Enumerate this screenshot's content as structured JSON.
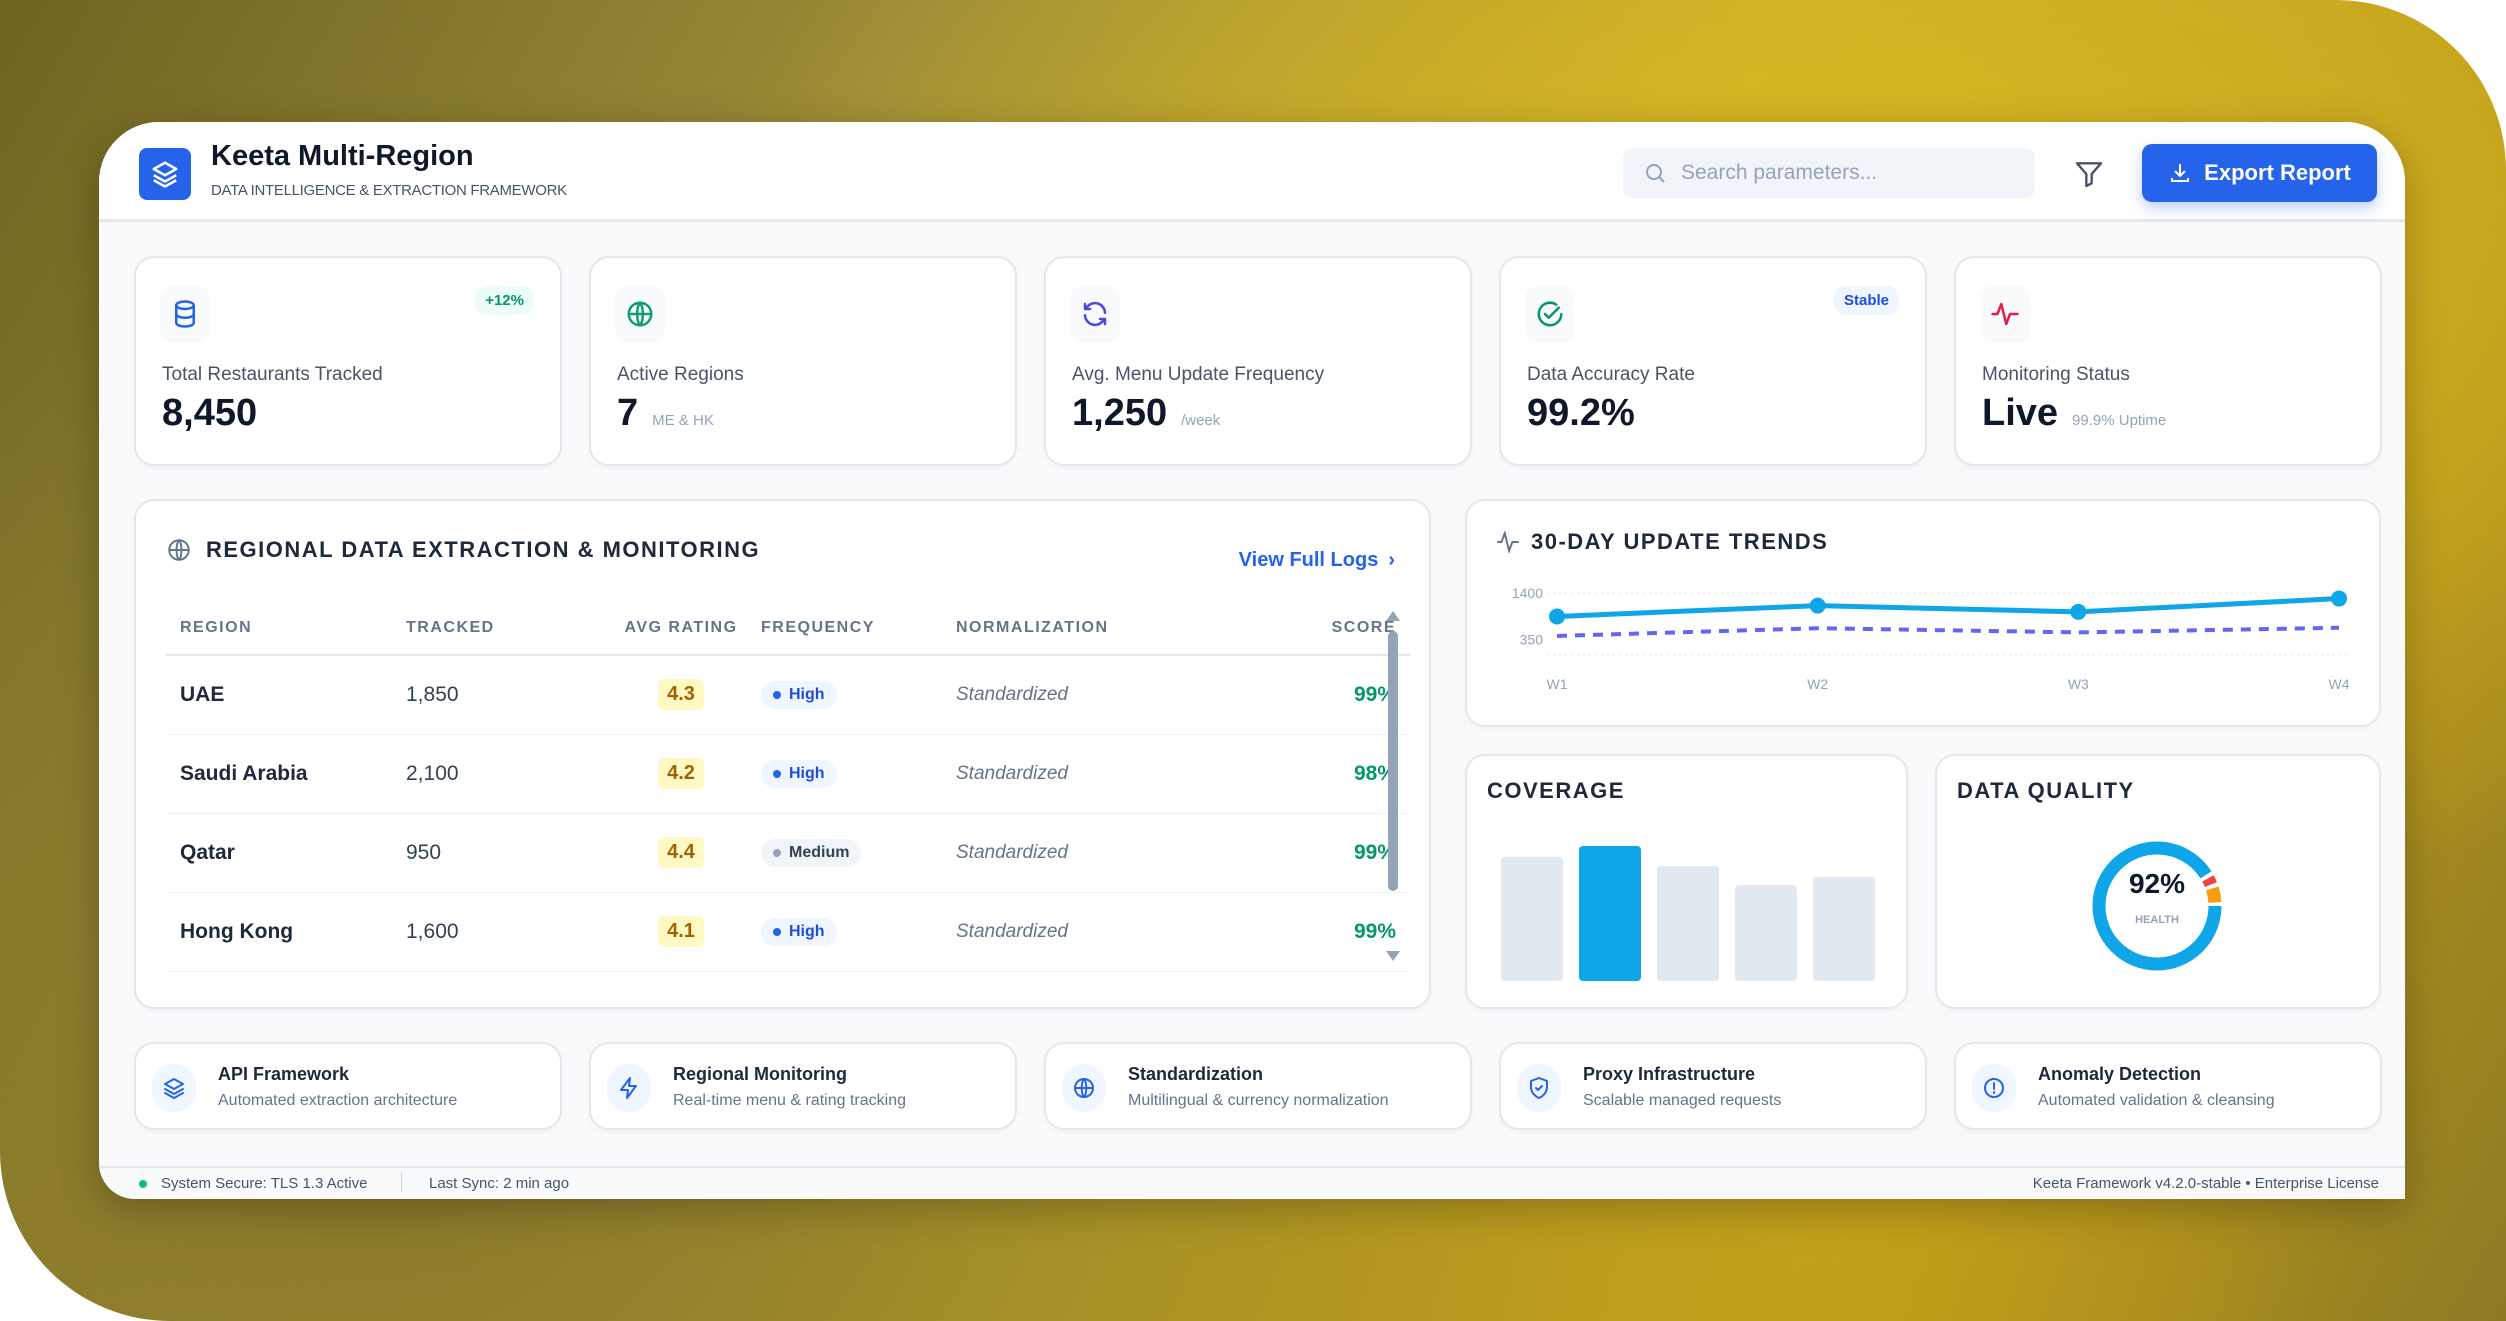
{
  "header": {
    "title": "Keeta Multi-Region",
    "subtitle": "DATA INTELLIGENCE & EXTRACTION FRAMEWORK",
    "search_placeholder": "Search parameters...",
    "export_label": "Export Report"
  },
  "stats": [
    {
      "icon": "database-icon",
      "label": "Total Restaurants Tracked",
      "value": "8,450",
      "unit": "",
      "badge": "+12%",
      "icon_color": "#2563eb"
    },
    {
      "icon": "globe-icon",
      "label": "Active Regions",
      "value": "7",
      "unit": "ME & HK",
      "badge": "",
      "icon_color": "#0f9d78"
    },
    {
      "icon": "refresh-icon",
      "label": "Avg. Menu Update Frequency",
      "value": "1,250",
      "unit": "/week",
      "badge": "",
      "icon_color": "#4f46e5"
    },
    {
      "icon": "check-circle-icon",
      "label": "Data Accuracy Rate",
      "value": "99.2%",
      "unit": "",
      "badge": "Stable",
      "icon_color": "#059669"
    },
    {
      "icon": "activity-icon",
      "label": "Monitoring Status",
      "value": "Live",
      "unit": "99.9% Uptime",
      "badge": "",
      "icon_color": "#e11d48"
    }
  ],
  "table": {
    "title": "REGIONAL DATA EXTRACTION & MONITORING",
    "link": "View Full Logs",
    "columns": [
      "REGION",
      "TRACKED",
      "AVG RATING",
      "FREQUENCY",
      "NORMALIZATION",
      "SCORE"
    ],
    "rows": [
      {
        "region": "UAE",
        "tracked": "1,850",
        "rating": "4.3",
        "frequency": "High",
        "normalization": "Standardized",
        "score": "99%"
      },
      {
        "region": "Saudi Arabia",
        "tracked": "2,100",
        "rating": "4.2",
        "frequency": "High",
        "normalization": "Standardized",
        "score": "98%"
      },
      {
        "region": "Qatar",
        "tracked": "950",
        "rating": "4.4",
        "frequency": "Medium",
        "normalization": "Standardized",
        "score": "99%"
      },
      {
        "region": "Hong Kong",
        "tracked": "1,600",
        "rating": "4.1",
        "frequency": "High",
        "normalization": "Standardized",
        "score": "99%"
      }
    ]
  },
  "chart_data": [
    {
      "type": "line",
      "title": "30-DAY UPDATE TRENDS",
      "x": [
        "W1",
        "W2",
        "W3",
        "W4"
      ],
      "yticks": [
        "1400",
        "350"
      ],
      "ylim": [
        0,
        1400
      ],
      "grid": true,
      "series": [
        {
          "values": [
            870,
            1115,
            975,
            1275
          ],
          "color": "#0ea5e9",
          "style": "solid"
        },
        {
          "values": [
            430,
            605,
            510,
            615
          ],
          "color": "#6366f1",
          "style": "dashed"
        }
      ]
    },
    {
      "type": "bar",
      "title": "COVERAGE",
      "values": [
        92,
        100,
        85,
        71,
        77
      ],
      "highlight_index": 1,
      "colors": {
        "highlight": "#0ea5e9",
        "base": "#e2e8f0"
      }
    },
    {
      "type": "pie",
      "title": "DATA QUALITY",
      "center_value": "92%",
      "center_label": "HEALTH",
      "slices": [
        {
          "value": 92,
          "color": "#0ea5e9"
        },
        {
          "value": 3,
          "color": "#ef4444"
        },
        {
          "value": 5,
          "color": "#f59e0b"
        }
      ]
    }
  ],
  "features": [
    {
      "icon": "layers-icon",
      "title": "API Framework",
      "desc": "Automated extraction architecture"
    },
    {
      "icon": "lightning-icon",
      "title": "Regional Monitoring",
      "desc": "Real-time menu & rating tracking"
    },
    {
      "icon": "globe-icon",
      "title": "Standardization",
      "desc": "Multilingual & currency normalization"
    },
    {
      "icon": "shield-icon",
      "title": "Proxy Infrastructure",
      "desc": "Scalable managed requests"
    },
    {
      "icon": "alert-circle-icon",
      "title": "Anomaly Detection",
      "desc": "Automated validation & cleansing"
    }
  ],
  "footer": {
    "security": "System Secure: TLS 1.3 Active",
    "sync": "Last Sync: 2 min ago",
    "version": "Keeta Framework v4.2.0-stable • Enterprise License"
  },
  "colors": {
    "accent": "#2563eb",
    "success": "#059669",
    "status_dot": "#10b981"
  }
}
